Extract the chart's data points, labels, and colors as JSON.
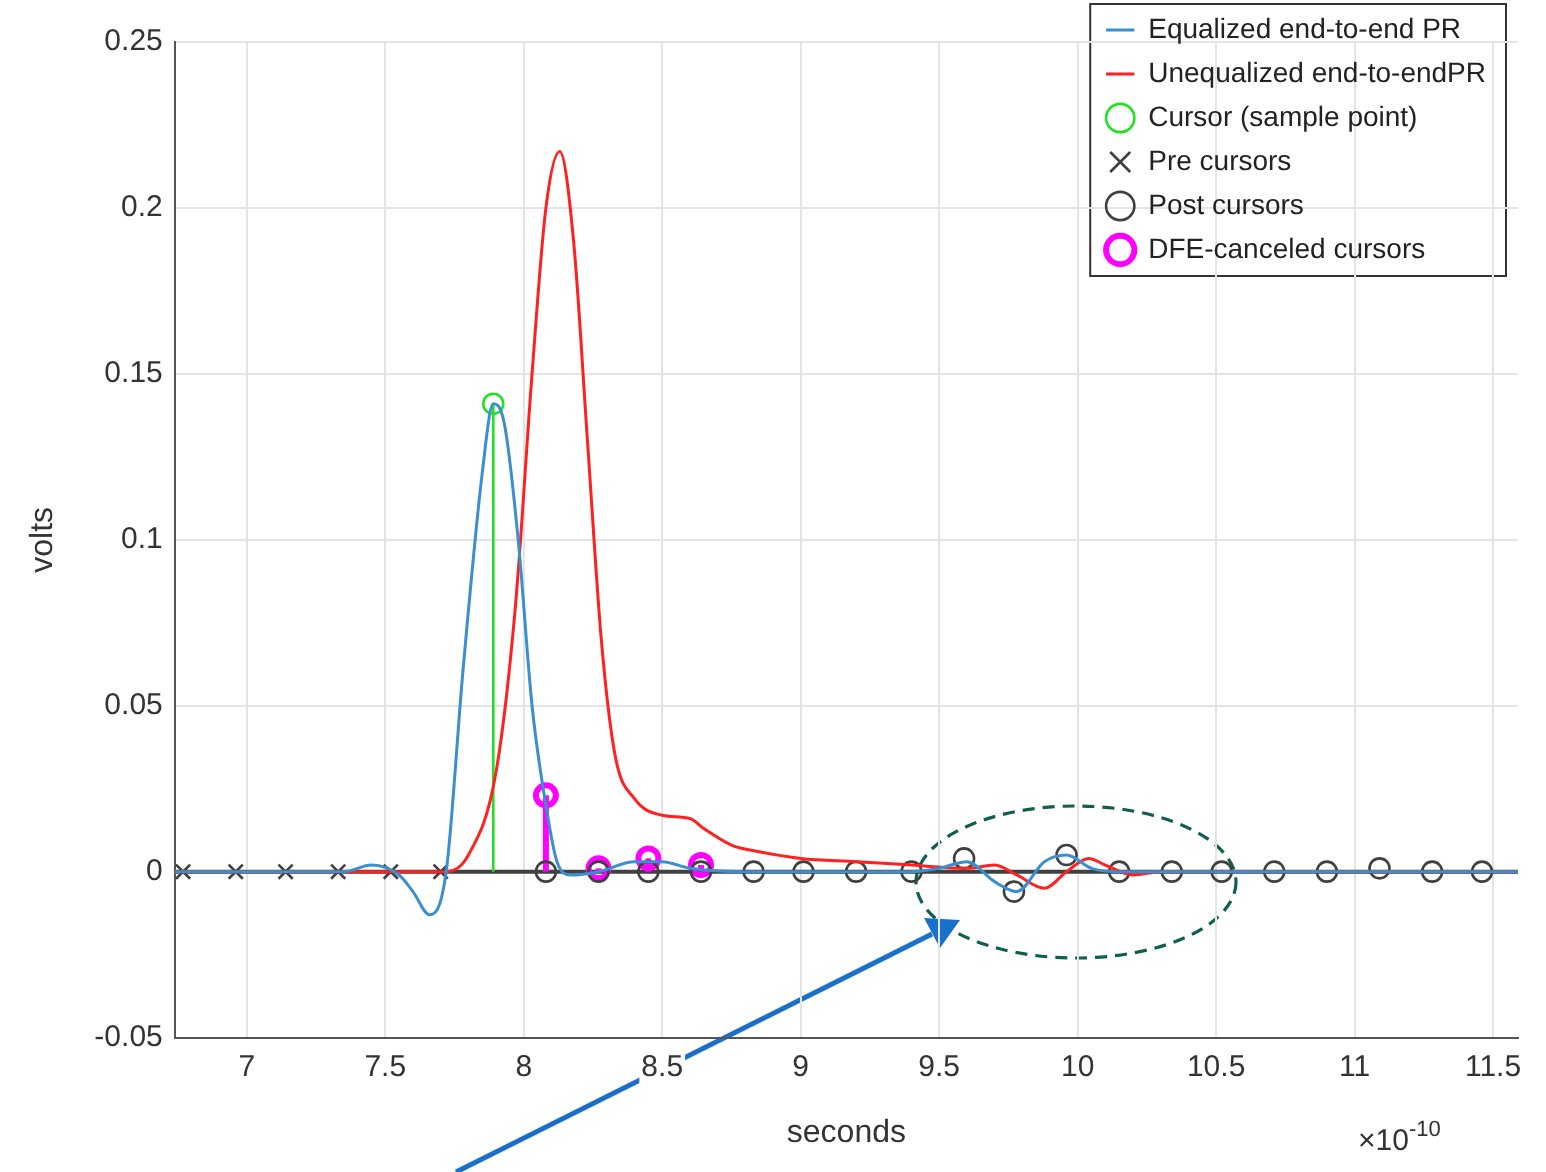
{
  "chart_data": {
    "type": "line",
    "xlabel": "seconds",
    "ylabel": "volts",
    "annotations": [
      "×10$^{-10}$"
    ],
    "xlim": [
      6.74,
      11.59
    ],
    "xticks": [
      7,
      7.5,
      8,
      8.5,
      9,
      9.5,
      10,
      10.5,
      11,
      11.5
    ],
    "ylim": [
      -0.05,
      0.25
    ],
    "yticks": [
      -0.05,
      0,
      0.05,
      0.1,
      0.15,
      0.2,
      0.25
    ],
    "grid": true,
    "legend": "top right",
    "line_style": "solid",
    "ref_lines": [
      {
        "axis": "y",
        "value": 0,
        "color": "#404040"
      }
    ],
    "series": [
      {
        "name": "Equalized end-to-end PR",
        "marker": "none",
        "color": "#3a8fd0",
        "x": [
          6.74,
          7.35,
          7.45,
          7.55,
          7.6,
          7.66,
          7.72,
          7.78,
          7.85,
          7.89,
          7.93,
          7.98,
          8.03,
          8.08,
          8.12,
          8.17,
          8.27,
          8.4,
          8.5,
          8.6,
          8.8,
          9.0,
          9.4,
          9.5,
          9.6,
          9.7,
          9.78,
          9.88,
          9.96,
          10.05,
          10.15,
          10.3,
          11.59
        ],
        "values": [
          0,
          0,
          0.002,
          -0.001,
          -0.006,
          -0.013,
          0,
          0.06,
          0.12,
          0.141,
          0.135,
          0.1,
          0.05,
          0.02,
          0.003,
          -0.001,
          0,
          0.003,
          0.003,
          0.001,
          0,
          0,
          0,
          0.001,
          0.003,
          -0.003,
          -0.006,
          0.003,
          0.005,
          0.001,
          0,
          0,
          0
        ]
      },
      {
        "name": "Unequalized end-to-endPR",
        "marker": "none",
        "color": "#ff2020",
        "x": [
          6.74,
          7.72,
          7.8,
          7.9,
          7.97,
          8.03,
          8.08,
          8.13,
          8.18,
          8.23,
          8.28,
          8.33,
          8.4,
          8.5,
          8.6,
          8.65,
          8.75,
          8.85,
          9.0,
          9.2,
          9.4,
          9.6,
          9.7,
          9.78,
          9.88,
          9.96,
          10.04,
          10.1,
          10.2,
          10.3,
          11.59
        ],
        "values": [
          0,
          0,
          0.005,
          0.03,
          0.08,
          0.15,
          0.2,
          0.217,
          0.19,
          0.13,
          0.07,
          0.035,
          0.022,
          0.017,
          0.016,
          0.013,
          0.008,
          0.006,
          0.004,
          0.003,
          0.002,
          0.001,
          0.002,
          -0.001,
          -0.005,
          0,
          0.004,
          0.002,
          -0.001,
          0,
          0
        ]
      },
      {
        "name": "Cursor (sample point)",
        "type": "lollipop",
        "marker": "circle",
        "color": "#22e022",
        "x": [
          7.89
        ],
        "values": [
          0.141
        ]
      },
      {
        "name": "Pre cursors",
        "type": "scatter",
        "marker": "cross",
        "color": "#404040",
        "x": [
          6.77,
          6.96,
          7.14,
          7.33,
          7.52,
          7.7
        ],
        "values": [
          0,
          0,
          0,
          0,
          0,
          0
        ]
      },
      {
        "name": "Post cursors",
        "type": "scatter",
        "marker": "circle",
        "color": "#404040",
        "x": [
          8.08,
          8.27,
          8.45,
          8.64,
          8.83,
          9.01,
          9.2,
          9.4,
          9.59,
          9.77,
          9.96,
          10.15,
          10.34,
          10.52,
          10.71,
          10.9,
          11.09,
          11.28,
          11.46
        ],
        "values": [
          0,
          0,
          0,
          0,
          0,
          0,
          0,
          0,
          0.004,
          -0.006,
          0.005,
          0,
          0,
          0,
          0,
          0,
          0.001,
          0,
          0
        ]
      },
      {
        "name": "DFE-canceled cursors",
        "type": "lollipop",
        "marker": "circle",
        "color": "#ff00ff",
        "x": [
          8.08,
          8.27,
          8.45,
          8.64
        ],
        "values": [
          0.023,
          0.001,
          0.004,
          0.002
        ]
      }
    ]
  }
}
